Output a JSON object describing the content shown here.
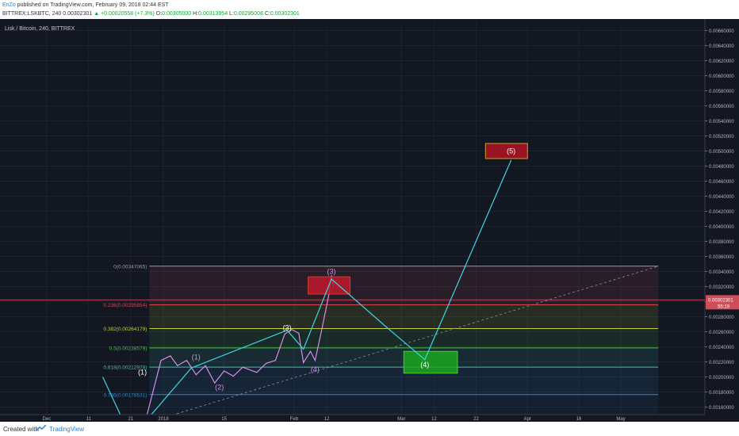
{
  "header": {
    "author": "EnZo",
    "published": " published on TradingView.com, February 09, 2018 02:44 EST",
    "symbol": "BITTREX:LSKBTC, 240",
    "last": "0.00302301",
    "arrow": "▲",
    "change": "+0.00020558 (+7.3%)",
    "o_label": "O:",
    "o_value": "0.00305000",
    "h_label": "H:",
    "h_value": "0.00313954",
    "l_label": "L:",
    "l_value": "0.00295008",
    "c_label": "C:",
    "c_value": "0.00302301"
  },
  "pane_title": "Lisk / Bitcoin, 240, BITTREX",
  "footer": {
    "created": "Created with",
    "brand": "TradingView"
  },
  "colors": {
    "background": "#131722",
    "grid": "#1e2230",
    "price_line": "#cf4c59",
    "wave": "#3fd6e6",
    "price": "#d98ce8",
    "dotted": "#8e8e99"
  },
  "chart_data": {
    "type": "line",
    "title": "Lisk / Bitcoin, 240, BITTREX",
    "ylim": [
      0.0015,
      0.0067
    ],
    "y_ticks": [
      "0.00160000",
      "0.00180000",
      "0.00200000",
      "0.00220000",
      "0.00240000",
      "0.00260000",
      "0.00280000",
      "0.00300000",
      "0.00320000",
      "0.00340000",
      "0.00360000",
      "0.00380000",
      "0.00400000",
      "0.00420000",
      "0.00440000",
      "0.00460000",
      "0.00480000",
      "0.00500000",
      "0.00520000",
      "0.00540000",
      "0.00560000",
      "0.00580000",
      "0.00600000",
      "0.00620000",
      "0.00640000",
      "0.00660000"
    ],
    "x_ticks": [
      {
        "label": "Dec",
        "x": 0.1
      },
      {
        "label": "11",
        "x": 1.0
      },
      {
        "label": "21",
        "x": 1.9
      },
      {
        "label": "2018",
        "x": 2.6
      },
      {
        "label": "15",
        "x": 3.9
      },
      {
        "label": "Feb",
        "x": 5.4
      },
      {
        "label": "12",
        "x": 6.1
      },
      {
        "label": "Mar",
        "x": 7.7
      },
      {
        "label": "12",
        "x": 8.4
      },
      {
        "label": "22",
        "x": 9.3
      },
      {
        "label": "Apr",
        "x": 10.4
      },
      {
        "label": "16",
        "x": 11.5
      },
      {
        "label": "May",
        "x": 12.4
      }
    ],
    "x_range": [
      -0.9,
      14.2
    ],
    "current_price": {
      "value": 0.00302301,
      "label": "0.00302301",
      "countdown": "55:19"
    },
    "fib_range": {
      "x_start": 2.3,
      "x_end": 13.2
    },
    "fib_levels": [
      {
        "ratio": "0",
        "value": 0.00347065,
        "label": "0(0.00347065)",
        "color": "#9a9aa3"
      },
      {
        "ratio": "0.236",
        "value": 0.00295854,
        "label": "0.236(0.00295854)",
        "color": "#cf4c59"
      },
      {
        "ratio": "0.382",
        "value": 0.00264179,
        "label": "0.382(0.00264179)",
        "color": "#c2d13a"
      },
      {
        "ratio": "0.5",
        "value": 0.00238579,
        "label": "0.5(0.00238579)",
        "color": "#4cbf4c"
      },
      {
        "ratio": "0.618",
        "value": 0.00212978,
        "label": "0.618(0.00212978)",
        "color": "#3fc1b3"
      },
      {
        "ratio": "0.786",
        "value": 0.00176531,
        "label": "0.786(0.00176531)",
        "color": "#2b8ad1"
      }
    ],
    "boxes": [
      {
        "name": "box-wave-3",
        "x0": 5.7,
        "x1": 6.6,
        "y0": 0.0031,
        "y1": 0.00333,
        "fill": "#c0182b",
        "stroke": "#d23a2a"
      },
      {
        "name": "box-wave-4",
        "x0": 7.75,
        "x1": 8.9,
        "y0": 0.00205,
        "y1": 0.00234,
        "fill": "#1ba61e",
        "stroke": "#45d03c"
      },
      {
        "name": "box-wave-5",
        "x0": 9.5,
        "x1": 10.4,
        "y0": 0.0049,
        "y1": 0.0051,
        "fill": "#b01422",
        "stroke": "#c8a025"
      }
    ],
    "wave_path": [
      [
        1.3,
        0.002
      ],
      [
        1.7,
        0.00147
      ],
      [
        2.3,
        0.00147
      ],
      [
        3.2,
        0.00212
      ],
      [
        5.25,
        0.00262
      ],
      [
        5.6,
        0.00237
      ],
      [
        6.2,
        0.0033
      ],
      [
        7.4,
        0.00265
      ],
      [
        8.2,
        0.00223
      ],
      [
        10.05,
        0.00488
      ]
    ],
    "price_series": [
      [
        2.2,
        0.00138
      ],
      [
        2.55,
        0.00222
      ],
      [
        2.75,
        0.00228
      ],
      [
        2.9,
        0.00215
      ],
      [
        3.1,
        0.00222
      ],
      [
        3.3,
        0.00203
      ],
      [
        3.5,
        0.00215
      ],
      [
        3.7,
        0.00192
      ],
      [
        3.9,
        0.00208
      ],
      [
        4.1,
        0.00201
      ],
      [
        4.3,
        0.00213
      ],
      [
        4.6,
        0.00206
      ],
      [
        4.8,
        0.00218
      ],
      [
        5.0,
        0.00222
      ],
      [
        5.2,
        0.00257
      ],
      [
        5.35,
        0.00263
      ],
      [
        5.5,
        0.00258
      ],
      [
        5.6,
        0.00219
      ],
      [
        5.75,
        0.00234
      ],
      [
        5.85,
        0.00222
      ],
      [
        6.0,
        0.00265
      ],
      [
        6.15,
        0.00311
      ],
      [
        6.2,
        0.00335
      ],
      [
        6.25,
        0.00318
      ]
    ],
    "trend_line": {
      "from": [
        2.3,
        0.0014
      ],
      "to": [
        13.2,
        0.00347
      ]
    },
    "wave_labels": [
      {
        "label": "(1)",
        "x": 2.15,
        "y": 0.00203,
        "color": "#ffffff"
      },
      {
        "label": "(1)",
        "x": 3.3,
        "y": 0.00223,
        "color": "#d98ce8"
      },
      {
        "label": "(2)",
        "x": 3.8,
        "y": 0.00183,
        "color": "#d98ce8"
      },
      {
        "label": "(3)",
        "x": 5.25,
        "y": 0.00262,
        "color": "#ffffff"
      },
      {
        "label": "(4)",
        "x": 5.85,
        "y": 0.00207,
        "color": "#d98ce8"
      },
      {
        "label": "(3)",
        "x": 6.2,
        "y": 0.00337,
        "color": "#d98ce8"
      },
      {
        "label": "(4)",
        "x": 8.2,
        "y": 0.00213,
        "color": "#ffffff"
      },
      {
        "label": "(5)",
        "x": 10.05,
        "y": 0.00497,
        "color": "#ffffff"
      }
    ]
  }
}
